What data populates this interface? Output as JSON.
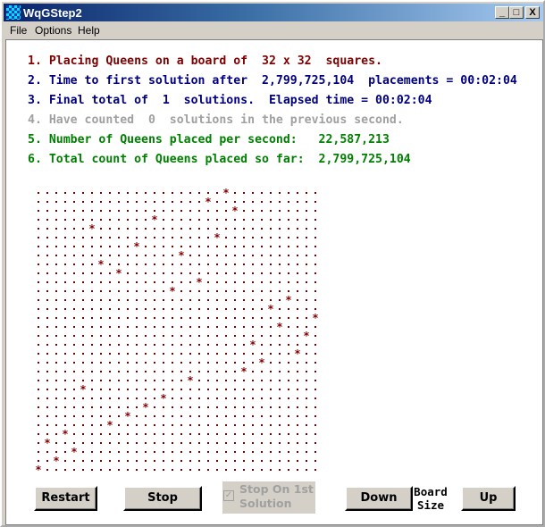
{
  "window": {
    "title": "WqGStep2",
    "minimize": "_",
    "maximize": "□",
    "close": "X"
  },
  "menu": [
    "File",
    "Options",
    "Help"
  ],
  "status_lines": [
    {
      "text": "1. Placing Queens on a board of  32 x 32  squares.",
      "color": "#800000"
    },
    {
      "text": "2. Time to first solution after  2,799,725,104  placements = 00:02:04",
      "color": "#000080"
    },
    {
      "text": "3. Final total of  1  solutions.  Elapsed time = 00:02:04",
      "color": "#000080"
    },
    {
      "text": "4. Have counted  0  solutions in the previous second.",
      "color": "#a0a0a0"
    },
    {
      "text": "5. Number of Queens placed per second:   22,587,213",
      "color": "#008000"
    },
    {
      "text": "6. Total count of Queens placed so far:  2,799,725,104",
      "color": "#008000"
    }
  ],
  "board": {
    "size": 32,
    "empty_mark": "dot",
    "queen_mark": "*",
    "color": "#800000",
    "queen_columns_by_row": [
      21,
      19,
      22,
      13,
      6,
      20,
      11,
      16,
      7,
      9,
      18,
      15,
      28,
      26,
      31,
      27,
      30,
      24,
      29,
      25,
      23,
      17,
      5,
      14,
      12,
      10,
      8,
      3,
      1,
      4,
      2,
      0
    ]
  },
  "controls": {
    "restart": "Restart",
    "stop": "Stop",
    "stop_on_first": "Stop On 1st Solution",
    "stop_on_first_checked": true,
    "stop_on_first_disabled": true,
    "down": "Down",
    "board_size": "Board Size",
    "up": "Up"
  }
}
